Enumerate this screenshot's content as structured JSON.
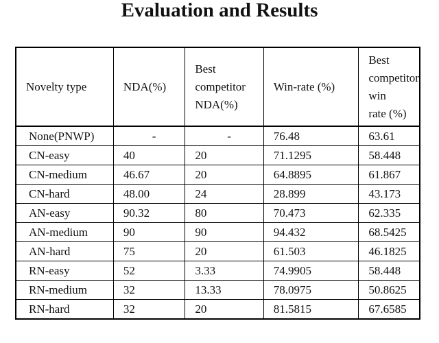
{
  "title": "Evaluation and Results",
  "table": {
    "header": [
      [
        "Novelty type"
      ],
      [
        "NDA(%)"
      ],
      [
        "Best",
        "competitor",
        "NDA(%)"
      ],
      [
        "Win-rate (%)"
      ],
      [
        "Best",
        "competitor",
        "win",
        "rate (%)"
      ]
    ],
    "rows": [
      [
        "None(PNWP)",
        "-",
        "-",
        "76.48",
        "63.61"
      ],
      [
        "CN-easy",
        "40",
        "20",
        "71.1295",
        "58.448"
      ],
      [
        "CN-medium",
        "46.67",
        "20",
        "64.8895",
        "61.867"
      ],
      [
        "CN-hard",
        "48.00",
        "24",
        "28.899",
        "43.173"
      ],
      [
        "AN-easy",
        "90.32",
        "80",
        "70.473",
        "62.335"
      ],
      [
        "AN-medium",
        "90",
        "90",
        "94.432",
        "68.5425"
      ],
      [
        "AN-hard",
        "75",
        "20",
        "61.503",
        "46.1825"
      ],
      [
        "RN-easy",
        "52",
        "3.33",
        "74.9905",
        "58.448"
      ],
      [
        "RN-medium",
        "32",
        "13.33",
        "78.0975",
        "50.8625"
      ],
      [
        "RN-hard",
        "32",
        "20",
        "81.5815",
        "67.6585"
      ]
    ]
  }
}
